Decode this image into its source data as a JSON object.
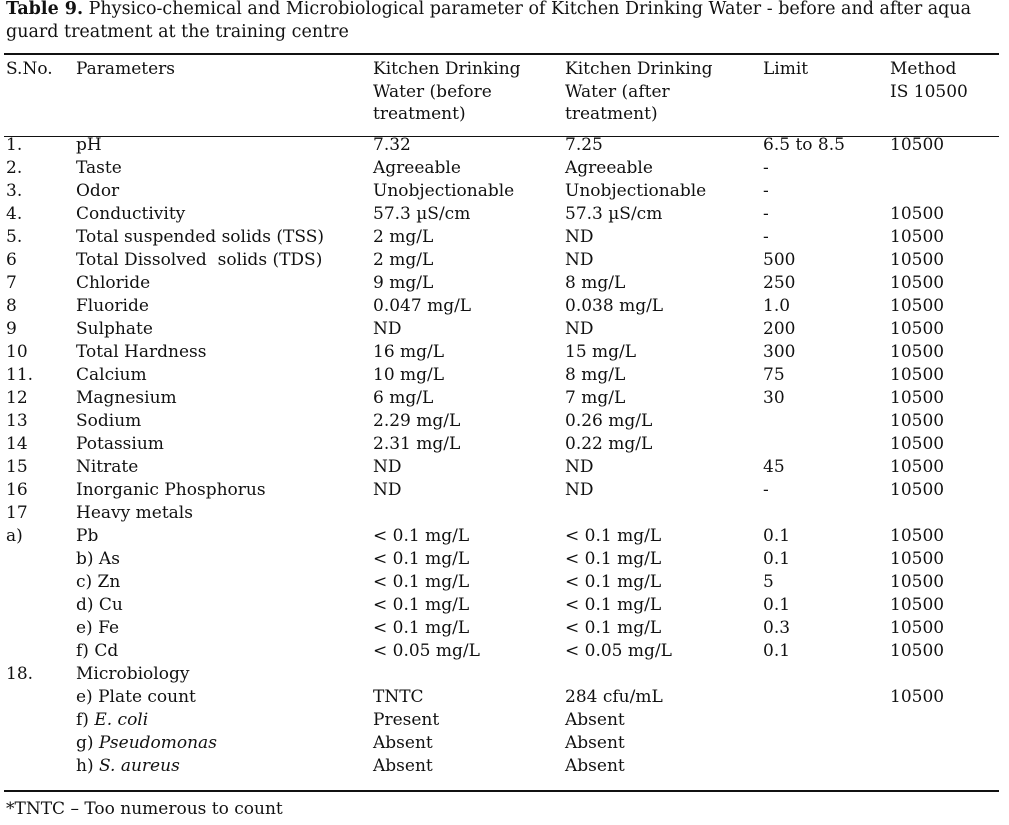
{
  "caption": {
    "label": "Table 9.",
    "text": " Physico-chemical and Microbiological parameter of Kitchen Drinking Water - before and after aqua guard treatment at the training centre"
  },
  "table": {
    "headers": [
      [
        "S.No."
      ],
      [
        "Parameters"
      ],
      [
        "Kitchen Drinking",
        "Water (before",
        "treatment)"
      ],
      [
        "Kitchen Drinking",
        "Water (after",
        "treatment)"
      ],
      [
        "Limit"
      ],
      [
        "Method",
        "IS 10500"
      ]
    ],
    "rows": [
      {
        "sno": "1.",
        "param": "pH",
        "before": "7.32",
        "after": "7.25",
        "limit": "6.5 to 8.5",
        "method": "10500"
      },
      {
        "sno": "2.",
        "param": "Taste",
        "before": "Agreeable",
        "after": "Agreeable",
        "limit": "-",
        "method": ""
      },
      {
        "sno": "3.",
        "param": "Odor",
        "before": "Unobjectionable",
        "after": "Unobjectionable",
        "limit": "-",
        "method": ""
      },
      {
        "sno": "4.",
        "param": "Conductivity",
        "before": "57.3 µS/cm",
        "after": "57.3 µS/cm",
        "limit": "-",
        "method": "10500"
      },
      {
        "sno": "5.",
        "param": "Total suspended solids (TSS)",
        "before": "2 mg/L",
        "after": "ND",
        "limit": "-",
        "method": "10500"
      },
      {
        "sno": "6",
        "param": "Total Dissolved  solids (TDS)",
        "before": "2 mg/L",
        "after": "ND",
        "limit": "500",
        "method": "10500"
      },
      {
        "sno": "7",
        "param": "Chloride",
        "before": "9 mg/L",
        "after": "8 mg/L",
        "limit": "250",
        "method": "10500"
      },
      {
        "sno": "8",
        "param": "Fluoride",
        "before": "0.047 mg/L",
        "after": "0.038 mg/L",
        "limit": "1.0",
        "method": "10500"
      },
      {
        "sno": "9",
        "param": "Sulphate",
        "before": "ND",
        "after": "ND",
        "limit": "200",
        "method": "10500"
      },
      {
        "sno": "10",
        "param": "Total Hardness",
        "before": "16 mg/L",
        "after": "15 mg/L",
        "limit": "300",
        "method": "10500"
      },
      {
        "sno": "11.",
        "param": "Calcium",
        "before": "10 mg/L",
        "after": "8 mg/L",
        "limit": "75",
        "method": "10500"
      },
      {
        "sno": "12",
        "param": "Magnesium",
        "before": "6 mg/L",
        "after": "7 mg/L",
        "limit": "30",
        "method": "10500"
      },
      {
        "sno": "13",
        "param": "Sodium",
        "before": "2.29 mg/L",
        "after": "0.26 mg/L",
        "limit": "",
        "method": "10500"
      },
      {
        "sno": "14",
        "param": "Potassium",
        "before": "2.31 mg/L",
        "after": "0.22 mg/L",
        "limit": "",
        "method": "10500"
      },
      {
        "sno": "15",
        "param": "Nitrate",
        "before": "ND",
        "after": "ND",
        "limit": "45",
        "method": "10500"
      },
      {
        "sno": "16",
        "param": "Inorganic Phosphorus",
        "before": "ND",
        "after": "ND",
        "limit": "-",
        "method": "10500"
      },
      {
        "sno": "17",
        "param": "Heavy metals",
        "before": "",
        "after": "",
        "limit": "",
        "method": ""
      },
      {
        "sno": "a)",
        "param": "Pb",
        "before": "< 0.1 mg/L",
        "after": "< 0.1 mg/L",
        "limit": "0.1",
        "method": "10500"
      },
      {
        "sno": "",
        "param": "b) As",
        "before": "< 0.1 mg/L",
        "after": "< 0.1 mg/L",
        "limit": "0.1",
        "method": "10500"
      },
      {
        "sno": "",
        "param": "c) Zn",
        "before": "< 0.1 mg/L",
        "after": "< 0.1 mg/L",
        "limit": "5",
        "method": "10500"
      },
      {
        "sno": "",
        "param": "d) Cu",
        "before": "< 0.1 mg/L",
        "after": "< 0.1 mg/L",
        "limit": "0.1",
        "method": "10500"
      },
      {
        "sno": "",
        "param": "e) Fe",
        "before": "< 0.1 mg/L",
        "after": "< 0.1 mg/L",
        "limit": "0.3",
        "method": "10500"
      },
      {
        "sno": "",
        "param": "f) Cd",
        "before": "< 0.05 mg/L",
        "after": "< 0.05 mg/L",
        "limit": "0.1",
        "method": "10500"
      },
      {
        "sno": "18.",
        "param": "Microbiology",
        "before": "",
        "after": "",
        "limit": "",
        "method": ""
      },
      {
        "sno": "",
        "param": "e) Plate count",
        "before": "TNTC",
        "after": "284 cfu/mL",
        "limit": "",
        "method": "10500"
      },
      {
        "sno": "",
        "param": "f) ",
        "param_italic": "E. coli",
        "before": "Present",
        "after": "Absent",
        "limit": "",
        "method": ""
      },
      {
        "sno": "",
        "param": "g) ",
        "param_italic": "Pseudomonas",
        "before": "Absent",
        "after": "Absent",
        "limit": "",
        "method": ""
      },
      {
        "sno": "",
        "param": "h) ",
        "param_italic": "S. aureus",
        "before": "Absent",
        "after": "Absent",
        "limit": "",
        "method": ""
      }
    ]
  },
  "footnote": "*TNTC – Too numerous to count"
}
